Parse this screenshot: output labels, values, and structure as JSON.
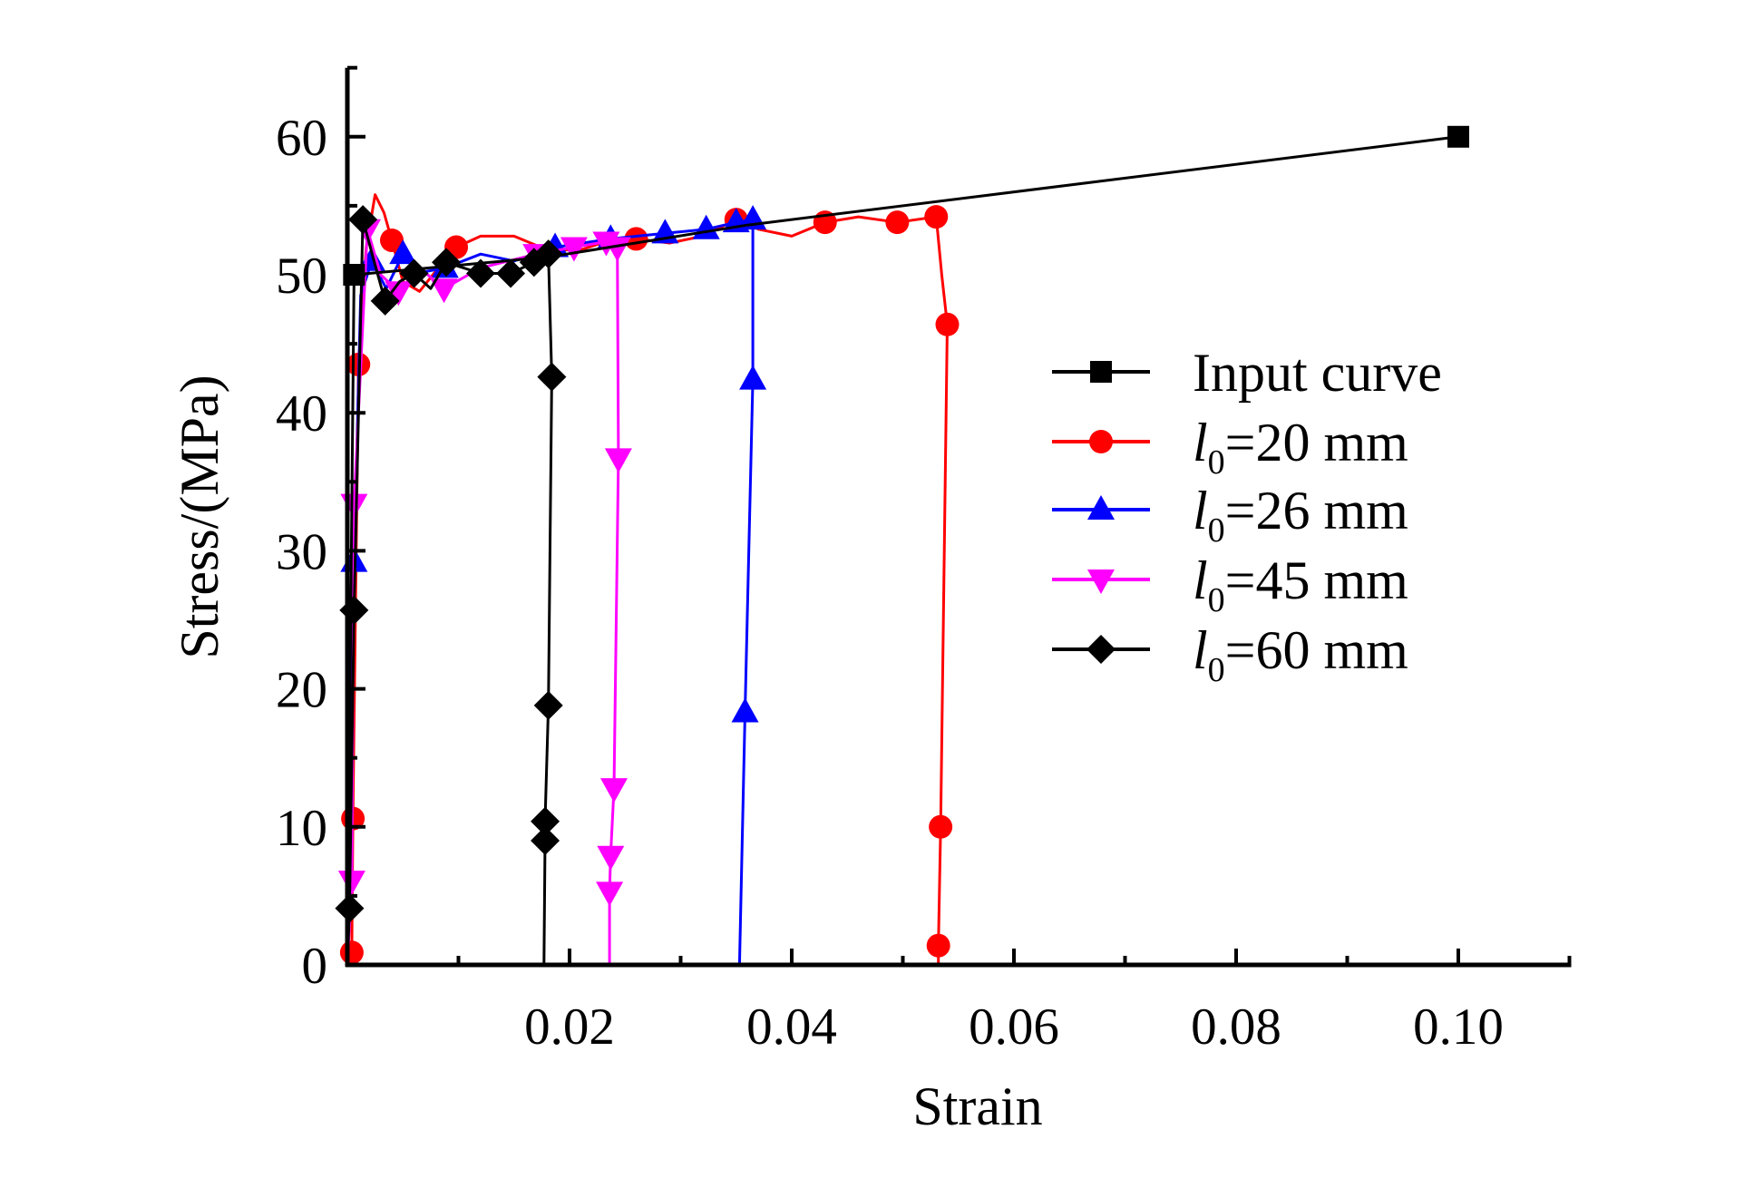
{
  "chart_data": {
    "type": "line",
    "title": "",
    "xlabel": "Strain",
    "ylabel": "Stress/(MPa)",
    "xlim": [
      0,
      0.11
    ],
    "ylim": [
      0,
      65
    ],
    "x_major_ticks": [
      0.02,
      0.04,
      0.06,
      0.08,
      0.1
    ],
    "x_tick_labels": [
      "0.02",
      "0.04",
      "0.06",
      "0.08",
      "0.10"
    ],
    "x_minor_ticks": [
      0.01,
      0.03,
      0.05,
      0.07,
      0.09,
      0.11
    ],
    "y_major_ticks": [
      0,
      10,
      20,
      30,
      40,
      50,
      60
    ],
    "y_tick_labels": [
      "0",
      "10",
      "20",
      "30",
      "40",
      "50",
      "60"
    ],
    "y_minor_ticks": [
      5,
      15,
      25,
      35,
      45,
      55,
      65
    ],
    "grid": false,
    "legend_position": "right",
    "series": [
      {
        "name": "Input curve",
        "legend_prefix": "",
        "legend_sub": "",
        "legend_suffix": "Input curve",
        "color": "#000000",
        "marker": "square",
        "line": [
          [
            0,
            0
          ],
          [
            0.0006,
            50
          ],
          [
            0.0182,
            51.3
          ],
          [
            0.036,
            53.6
          ],
          [
            0.1,
            60
          ]
        ],
        "markers": [
          [
            0.0006,
            50
          ],
          [
            0.1,
            60
          ]
        ]
      },
      {
        "name": "l0=20 mm",
        "legend_prefix": "l",
        "legend_sub": "0",
        "legend_suffix": "=20 mm",
        "color": "#ff0000",
        "marker": "circle",
        "line": [
          [
            0,
            0
          ],
          [
            0.0004,
            0.9
          ],
          [
            0.0005,
            10.6
          ],
          [
            0.001,
            43.5
          ],
          [
            0.0017,
            52
          ],
          [
            0.0025,
            55.8
          ],
          [
            0.0033,
            54.5
          ],
          [
            0.004,
            52.5
          ],
          [
            0.005,
            49.5
          ],
          [
            0.0065,
            48.8
          ],
          [
            0.0085,
            50.8
          ],
          [
            0.0098,
            52
          ],
          [
            0.012,
            52.8
          ],
          [
            0.015,
            52.8
          ],
          [
            0.018,
            51.8
          ],
          [
            0.021,
            51.8
          ],
          [
            0.024,
            52.6
          ],
          [
            0.026,
            52.6
          ],
          [
            0.029,
            52.3
          ],
          [
            0.032,
            52.8
          ],
          [
            0.035,
            54
          ],
          [
            0.037,
            53.3
          ],
          [
            0.04,
            52.8
          ],
          [
            0.043,
            53.8
          ],
          [
            0.046,
            54.2
          ],
          [
            0.0495,
            53.8
          ],
          [
            0.053,
            54.2
          ],
          [
            0.0535,
            50
          ],
          [
            0.054,
            46.4
          ],
          [
            0.0534,
            10
          ],
          [
            0.0532,
            1.4
          ],
          [
            0.0532,
            0
          ]
        ],
        "markers": [
          [
            0.0004,
            0.9
          ],
          [
            0.0005,
            10.6
          ],
          [
            0.001,
            43.5
          ],
          [
            0.004,
            52.5
          ],
          [
            0.0098,
            52
          ],
          [
            0.026,
            52.6
          ],
          [
            0.035,
            54
          ],
          [
            0.043,
            53.8
          ],
          [
            0.0495,
            53.8
          ],
          [
            0.053,
            54.2
          ],
          [
            0.054,
            46.4
          ],
          [
            0.0534,
            10
          ],
          [
            0.0532,
            1.4
          ]
        ]
      },
      {
        "name": "l0=26 mm",
        "legend_prefix": "l",
        "legend_sub": "0",
        "legend_suffix": "=26 mm",
        "color": "#0000ff",
        "marker": "triangle-up",
        "line": [
          [
            0,
            0
          ],
          [
            0.0006,
            29.2
          ],
          [
            0.0012,
            48.5
          ],
          [
            0.0022,
            51
          ],
          [
            0.0035,
            49
          ],
          [
            0.005,
            51.5
          ],
          [
            0.0068,
            50.2
          ],
          [
            0.0088,
            50.5
          ],
          [
            0.012,
            51.5
          ],
          [
            0.015,
            51
          ],
          [
            0.0187,
            52
          ],
          [
            0.0237,
            52.6
          ],
          [
            0.0286,
            53
          ],
          [
            0.0323,
            53.3
          ],
          [
            0.035,
            53.8
          ],
          [
            0.0365,
            54
          ],
          [
            0.0365,
            42.4
          ],
          [
            0.0358,
            18.3
          ],
          [
            0.0353,
            0
          ]
        ],
        "markers": [
          [
            0.0006,
            29.2
          ],
          [
            0.0022,
            51
          ],
          [
            0.005,
            51.5
          ],
          [
            0.0088,
            50.5
          ],
          [
            0.0187,
            52
          ],
          [
            0.0237,
            52.6
          ],
          [
            0.0286,
            53
          ],
          [
            0.0323,
            53.3
          ],
          [
            0.035,
            53.8
          ],
          [
            0.0365,
            54
          ],
          [
            0.0365,
            42.4
          ],
          [
            0.0358,
            18.3
          ]
        ]
      },
      {
        "name": "l0=45 mm",
        "legend_prefix": "l",
        "legend_sub": "0",
        "legend_suffix": "=45 mm",
        "color": "#ff00ff",
        "marker": "triangle-down",
        "line": [
          [
            0,
            0
          ],
          [
            0.0004,
            6.1
          ],
          [
            0.0006,
            33.4
          ],
          [
            0.0018,
            53.3
          ],
          [
            0.003,
            50
          ],
          [
            0.0046,
            48.8
          ],
          [
            0.0065,
            50.5
          ],
          [
            0.0087,
            49
          ],
          [
            0.012,
            50.5
          ],
          [
            0.017,
            51.5
          ],
          [
            0.0204,
            52
          ],
          [
            0.0233,
            52.4
          ],
          [
            0.0243,
            52
          ],
          [
            0.0244,
            36.7
          ],
          [
            0.024,
            12.8
          ],
          [
            0.0237,
            7.9
          ],
          [
            0.0236,
            5.3
          ],
          [
            0.0236,
            0
          ]
        ],
        "markers": [
          [
            0.0004,
            6.1
          ],
          [
            0.0006,
            33.4
          ],
          [
            0.0018,
            53.3
          ],
          [
            0.0046,
            48.8
          ],
          [
            0.0087,
            49
          ],
          [
            0.017,
            51.5
          ],
          [
            0.0204,
            52
          ],
          [
            0.0233,
            52.4
          ],
          [
            0.0243,
            52
          ],
          [
            0.0244,
            36.7
          ],
          [
            0.024,
            12.8
          ],
          [
            0.0237,
            7.9
          ],
          [
            0.0236,
            5.3
          ]
        ]
      },
      {
        "name": "l0=60 mm",
        "legend_prefix": "l",
        "legend_sub": "0",
        "legend_suffix": "=60 mm",
        "color": "#000000",
        "marker": "diamond",
        "line": [
          [
            0,
            0
          ],
          [
            0.0002,
            4.1
          ],
          [
            0.0006,
            25.7
          ],
          [
            0.0014,
            54
          ],
          [
            0.0024,
            51
          ],
          [
            0.0034,
            48.1
          ],
          [
            0.0047,
            49.5
          ],
          [
            0.006,
            50.1
          ],
          [
            0.0075,
            49
          ],
          [
            0.0089,
            50.9
          ],
          [
            0.012,
            50.1
          ],
          [
            0.0147,
            50.1
          ],
          [
            0.0168,
            50.9
          ],
          [
            0.0181,
            51.5
          ],
          [
            0.0184,
            42.6
          ],
          [
            0.0181,
            18.8
          ],
          [
            0.0178,
            10.4
          ],
          [
            0.0178,
            9.0
          ],
          [
            0.0177,
            0
          ]
        ],
        "markers": [
          [
            0.0002,
            4.1
          ],
          [
            0.0006,
            25.7
          ],
          [
            0.0014,
            54
          ],
          [
            0.0034,
            48.1
          ],
          [
            0.006,
            50.1
          ],
          [
            0.0089,
            50.9
          ],
          [
            0.012,
            50.1
          ],
          [
            0.0147,
            50.1
          ],
          [
            0.0168,
            50.9
          ],
          [
            0.0181,
            51.5
          ],
          [
            0.0184,
            42.6
          ],
          [
            0.0181,
            18.8
          ],
          [
            0.0178,
            10.4
          ],
          [
            0.0178,
            9.0
          ]
        ]
      }
    ]
  }
}
